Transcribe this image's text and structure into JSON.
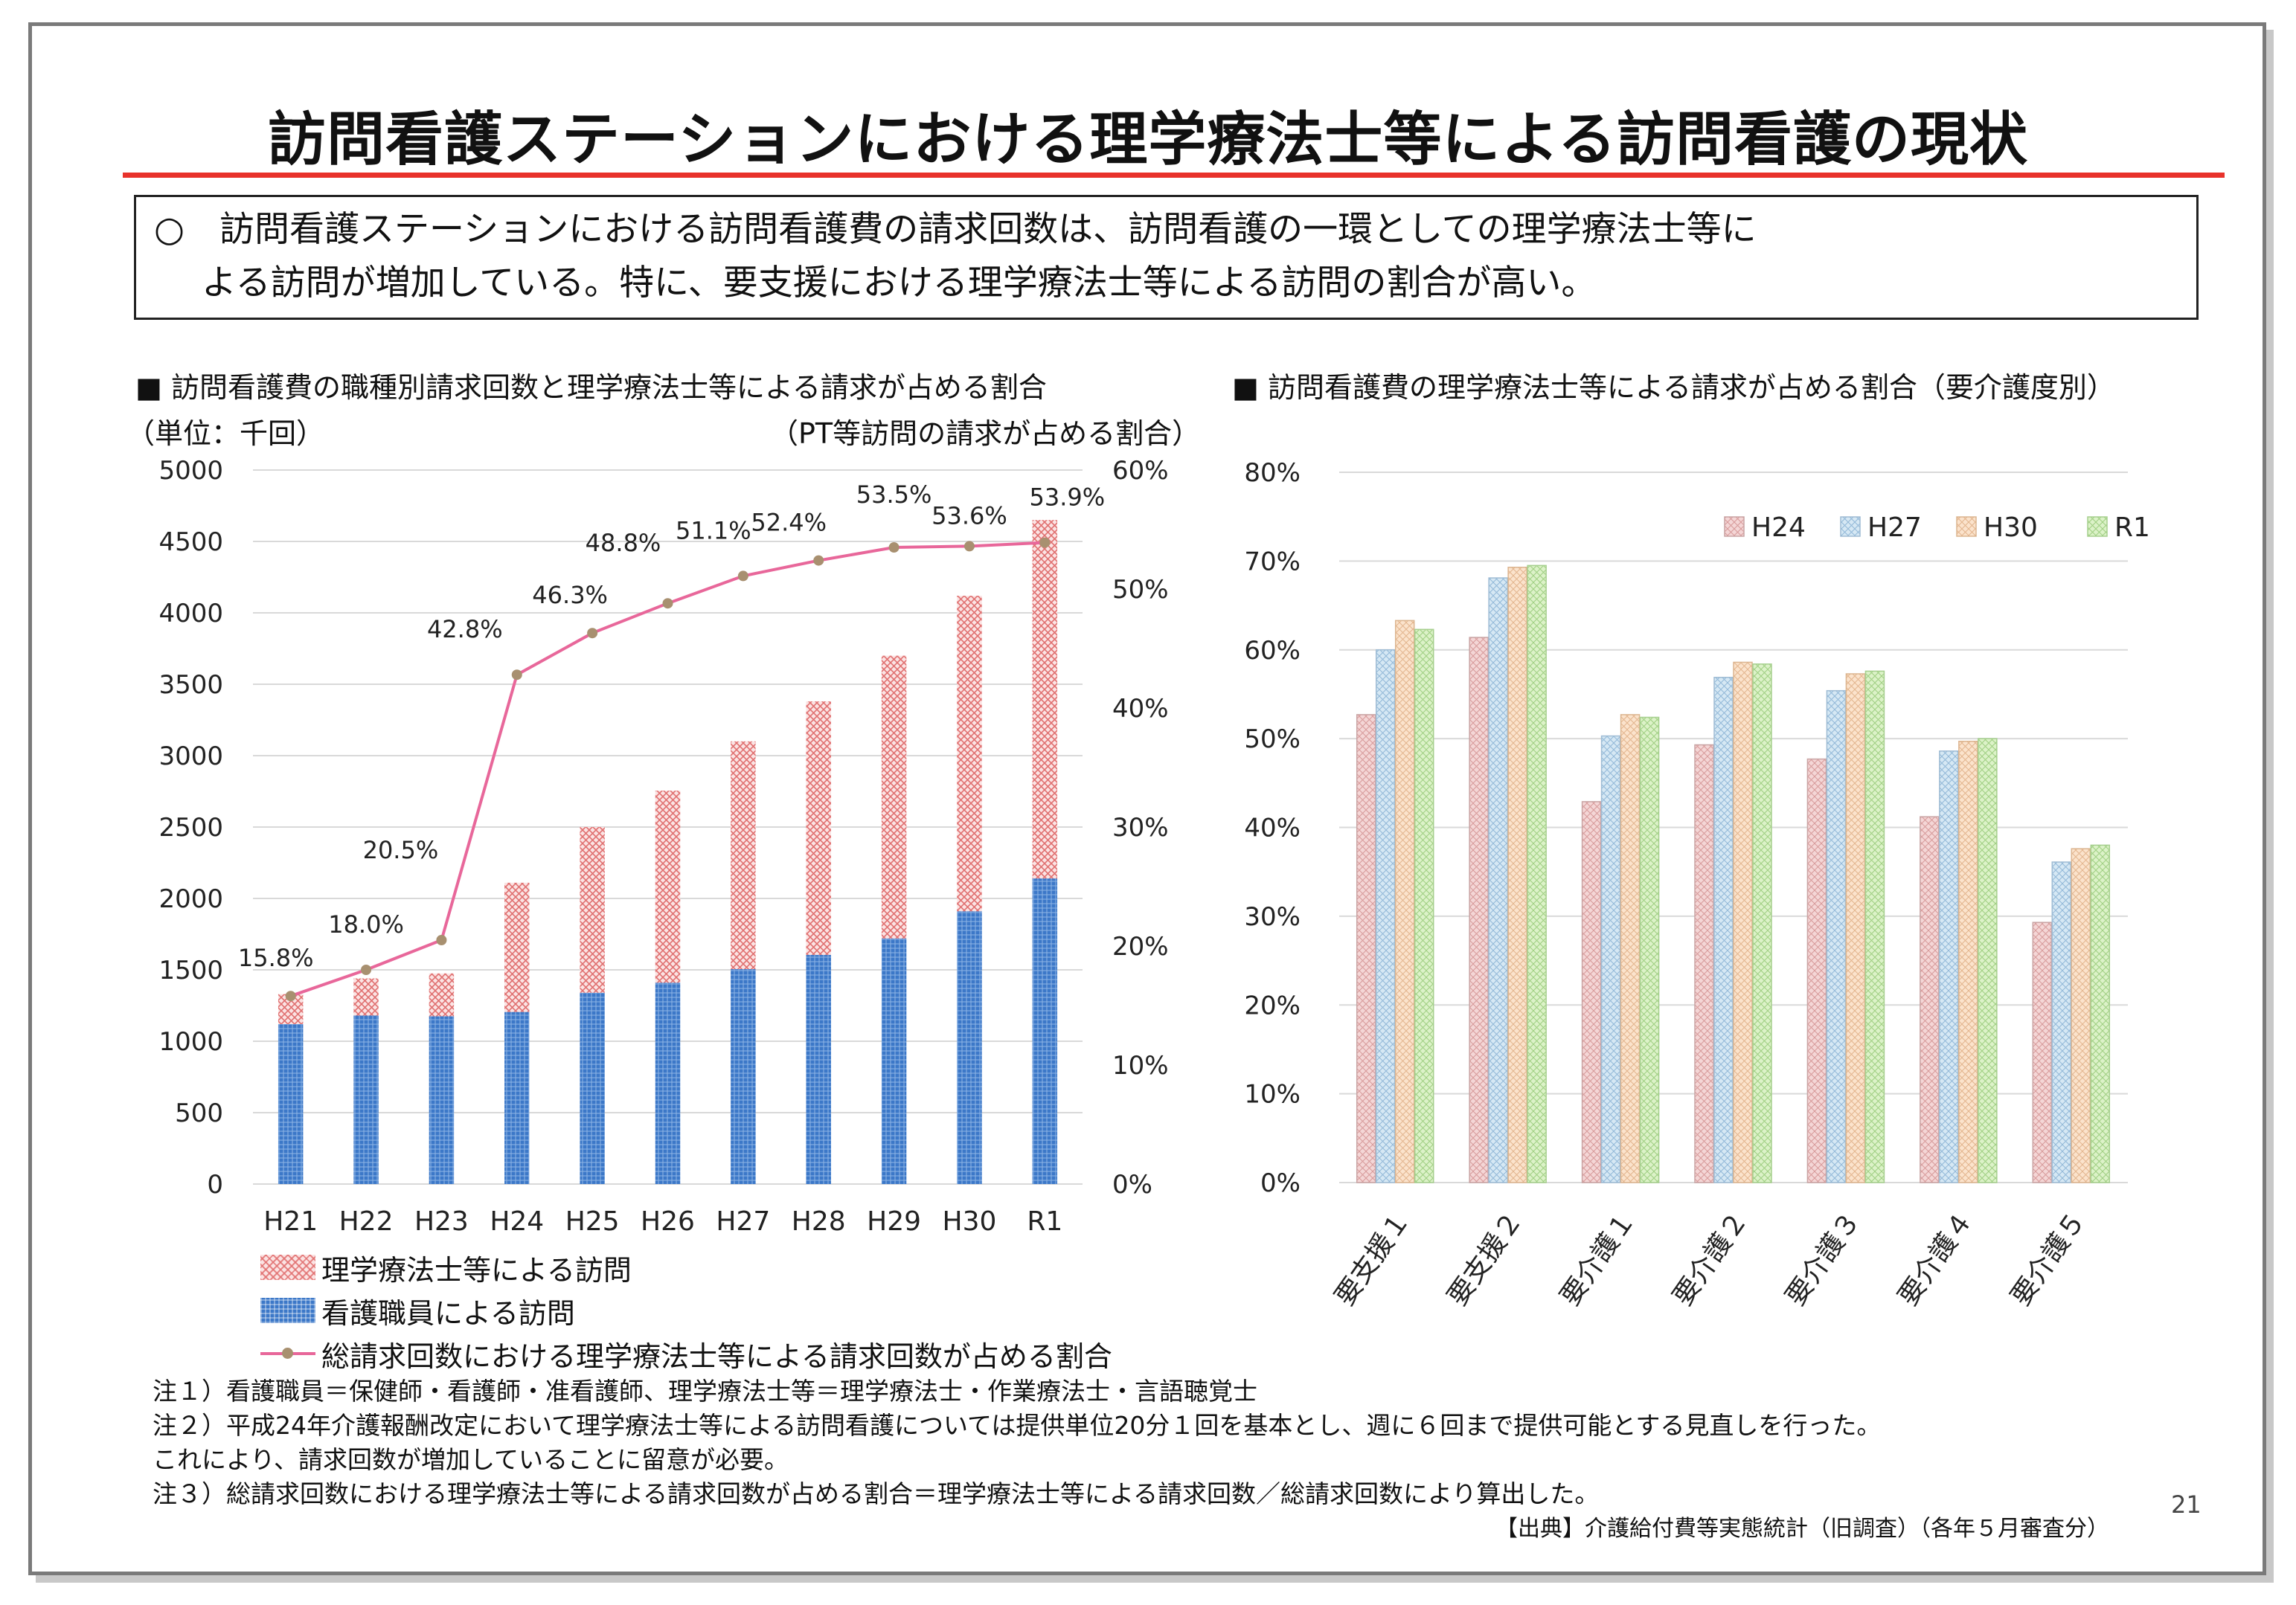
{
  "page": {
    "title": "訪問看護ステーションにおける理学療法士等による訪問看護の現状",
    "summary_line1": "○　訪問看護ステーションにおける訪問看護費の請求回数は、訪問看護の一環としての理学療法士等に",
    "summary_line2": "よる訪問が増加している。特に、要支援における理学療法士等による訪問の割合が高い。",
    "left_heading": "■ 訪問看護費の職種別請求回数と理学療法士等による請求が占める割合",
    "right_heading": "■ 訪問看護費の理学療法士等による請求が占める割合（要介護度別）",
    "notes": [
      "注１）看護職員＝保健師・看護師・准看護師、理学療法士等＝理学療法士・作業療法士・言語聴覚士",
      "注２）平成24年介護報酬改定において理学療法士等による訪問看護については提供単位20分１回を基本とし、週に６回まで提供可能とする見直しを行った。",
      "これにより、請求回数が増加していることに留意が必要。",
      "注３）総請求回数における理学療法士等による請求回数が占める割合＝理学療法士等による請求回数／総請求回数により算出した。"
    ],
    "source": "【出典】介護給付費等実態統計（旧調査）（各年５月審査分）",
    "page_number": "21"
  },
  "colors": {
    "title_rule": "#e8322b",
    "nurse_bar": "#3c78c8",
    "pt_bar": "#fbe3e3",
    "ratio_line": "#e8679a",
    "ratio_marker": "#a89070",
    "H24": "#f4d6d6",
    "H27": "#d6e8f4",
    "H30": "#fbe3cc",
    "R1": "#dcf2c8"
  },
  "chart_data": [
    {
      "type": "bar",
      "stacked": true,
      "unit_label": "（単位：千回）",
      "y2_label": "（PT等訪問の請求が占める割合）",
      "categories": [
        "H21",
        "H22",
        "H23",
        "H24",
        "H25",
        "H26",
        "H27",
        "H28",
        "H29",
        "H30",
        "R1"
      ],
      "ylim": [
        0,
        5000
      ],
      "yticks": [
        0,
        500,
        1000,
        1500,
        2000,
        2500,
        3000,
        3500,
        4000,
        4500,
        5000
      ],
      "y2lim": [
        0,
        0.6
      ],
      "y2ticks": [
        "0%",
        "10%",
        "20%",
        "30%",
        "40%",
        "50%",
        "60%"
      ],
      "grid": true,
      "series": [
        {
          "name": "看護職員による訪問",
          "values": [
            1120,
            1180,
            1175,
            1205,
            1340,
            1410,
            1505,
            1605,
            1720,
            1910,
            2140
          ]
        },
        {
          "name": "理学療法士等による訪問",
          "values": [
            210,
            260,
            300,
            905,
            1160,
            1345,
            1595,
            1775,
            1980,
            2210,
            2510
          ]
        },
        {
          "name": "総請求回数における理学療法士等による請求回数が占める割合",
          "axis": "y2",
          "type": "line",
          "values": [
            0.158,
            0.18,
            0.205,
            0.428,
            0.463,
            0.488,
            0.511,
            0.524,
            0.535,
            0.536,
            0.539
          ],
          "labels": [
            "15.8%",
            "18.0%",
            "20.5%",
            "42.8%",
            "46.3%",
            "48.8%",
            "51.1%",
            "52.4%",
            "53.5%",
            "53.6%",
            "53.9%"
          ]
        }
      ],
      "legend_position": "bottom"
    },
    {
      "type": "bar",
      "categories": [
        "要支援１",
        "要支援２",
        "要介護１",
        "要介護２",
        "要介護３",
        "要介護４",
        "要介護５"
      ],
      "ylim": [
        0,
        0.8
      ],
      "yticks": [
        "0%",
        "10%",
        "20%",
        "30%",
        "40%",
        "50%",
        "60%",
        "70%",
        "80%"
      ],
      "grid": true,
      "legend_position": "top-right",
      "series": [
        {
          "name": "H24",
          "values": [
            0.527,
            0.614,
            0.429,
            0.493,
            0.477,
            0.412,
            0.293
          ]
        },
        {
          "name": "H27",
          "values": [
            0.6,
            0.681,
            0.503,
            0.569,
            0.554,
            0.486,
            0.361
          ]
        },
        {
          "name": "H30",
          "values": [
            0.633,
            0.693,
            0.527,
            0.586,
            0.573,
            0.497,
            0.376
          ]
        },
        {
          "name": "R1",
          "values": [
            0.623,
            0.695,
            0.524,
            0.584,
            0.576,
            0.5,
            0.38
          ]
        }
      ]
    }
  ]
}
